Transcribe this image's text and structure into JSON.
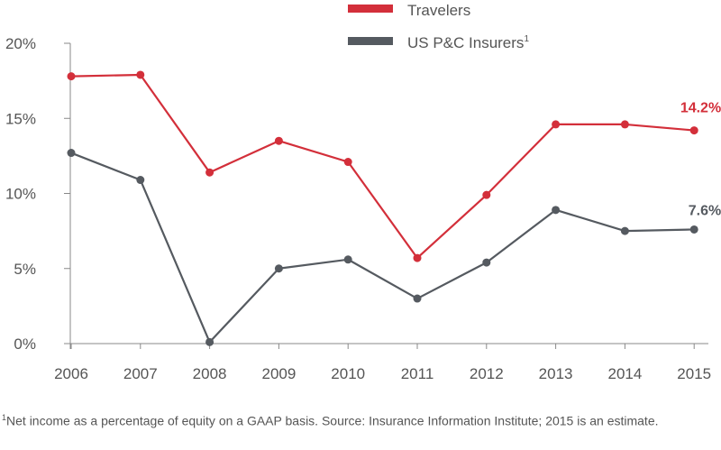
{
  "chart_data": {
    "type": "line",
    "categories": [
      "2006",
      "2007",
      "2008",
      "2009",
      "2010",
      "2011",
      "2012",
      "2013",
      "2014",
      "2015"
    ],
    "ylim": [
      0,
      20
    ],
    "yticks": [
      0,
      5,
      10,
      15,
      20
    ],
    "ytick_labels": [
      "0%",
      "5%",
      "10%",
      "15%",
      "20%"
    ],
    "series": [
      {
        "name": "Travelers",
        "color": "#d32f3a",
        "values": [
          17.8,
          17.9,
          11.4,
          13.5,
          12.1,
          5.7,
          9.9,
          14.6,
          14.6,
          14.2
        ],
        "end_label": "14.2%"
      },
      {
        "name": "US P&C Insurers",
        "name_sup": "1",
        "color": "#555a60",
        "values": [
          12.7,
          10.9,
          0.1,
          5.0,
          5.6,
          3.0,
          5.4,
          8.9,
          7.5,
          7.6
        ],
        "end_label": "7.6%"
      }
    ],
    "grid": false,
    "legend_position": "top"
  },
  "footnote": {
    "marker": "1",
    "text": "Net income as a percentage of equity on a GAAP basis. Source: Insurance Information Institute; 2015 is an estimate."
  }
}
